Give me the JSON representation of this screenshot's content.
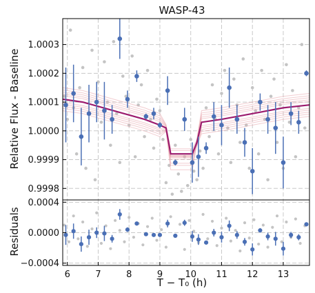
{
  "chart_data": [
    {
      "type": "scatter",
      "title": "WASP-43",
      "xlabel": "",
      "ylabel": "Relative Flux - Baseline",
      "xlim": [
        5.85,
        13.85
      ],
      "ylim": [
        0.99976,
        1.00039
      ],
      "yticks": [
        "0.9998",
        "0.9999",
        "1.0000",
        "1.0001",
        "1.0002",
        "1.0003"
      ],
      "grid": true,
      "series": [
        {
          "kind": "raw",
          "x": [
            5.9,
            6.0,
            6.1,
            6.2,
            6.3,
            6.4,
            6.5,
            6.6,
            6.7,
            6.8,
            6.9,
            7.0,
            7.1,
            7.2,
            7.3,
            7.4,
            7.5,
            7.6,
            7.7,
            7.8,
            7.9,
            8.0,
            8.1,
            8.2,
            8.3,
            8.4,
            8.5,
            8.6,
            8.7,
            8.8,
            8.9,
            9.0,
            9.1,
            9.2,
            9.3,
            9.4,
            9.5,
            9.6,
            9.7,
            9.8,
            9.9,
            10.0,
            10.1,
            10.2,
            10.3,
            10.4,
            10.5,
            10.6,
            10.7,
            10.8,
            10.9,
            11.0,
            11.1,
            11.2,
            11.3,
            11.4,
            11.5,
            11.6,
            11.7,
            11.8,
            11.9,
            12.0,
            12.1,
            12.2,
            12.3,
            12.4,
            12.5,
            12.6,
            12.7,
            12.8,
            12.9,
            13.0,
            13.1,
            13.2,
            13.3,
            13.4,
            13.5,
            13.6,
            13.7
          ],
          "y": [
            1.00012,
            1.00004,
            1.00035,
            1.00008,
            0.99992,
            1.00015,
            1.00022,
            0.99987,
            1.00006,
            1.00028,
            0.99983,
            1.00017,
            1.00003,
            1.00024,
            1.0001,
            0.99995,
            1.00031,
            1.00006,
            0.99989,
            1.00019,
            1.00012,
            1.00002,
            1.00026,
            0.99991,
            1.00009,
            1.00016,
            0.99998,
            1.00021,
            1.00004,
            0.99994,
            1.00011,
            1.00007,
            0.99997,
            0.99982,
            0.99988,
            0.99978,
            0.99995,
            0.99985,
            0.99979,
            0.99991,
            0.99981,
            0.99997,
            0.99986,
            0.99983,
            0.99993,
            0.99987,
            1.00008,
            0.99998,
            1.00016,
            1.00004,
            0.99992,
            1.00013,
            1.00021,
            1.00001,
            0.99989,
            1.00018,
            1.00009,
            0.99996,
            1.00025,
            1.00002,
            0.99987,
            1.00015,
            1.00007,
            0.99992,
            1.00021,
            1.00004,
            0.99983,
            1.00012,
            1.00018,
            0.99996,
            1.00009,
            0.99987,
            1.00023,
            1.00003,
            1.00014,
            0.99991,
            1.00008,
            1.0003,
            1.00001
          ]
        },
        {
          "kind": "binned",
          "x": [
            5.95,
            6.2,
            6.45,
            6.7,
            6.95,
            7.2,
            7.45,
            7.7,
            7.95,
            8.25,
            8.55,
            8.8,
            9.0,
            9.25,
            9.5,
            9.8,
            10.05,
            10.25,
            10.5,
            10.75,
            11.0,
            11.25,
            11.5,
            11.75,
            12.0,
            12.25,
            12.5,
            12.75,
            13.0,
            13.25,
            13.5,
            13.75
          ],
          "y": [
            1.00009,
            1.00013,
            0.99998,
            1.00006,
            1.0001,
            1.00007,
            1.00004,
            1.00032,
            1.00011,
            1.00019,
            1.00005,
            1.00006,
            1.00002,
            1.00014,
            0.99989,
            1.00004,
            0.99989,
            0.99991,
            0.99994,
            1.00005,
            1.00002,
            1.00015,
            1.00004,
            0.99996,
            0.99986,
            1.0001,
            1.00004,
            1.00001,
            0.99989,
            1.00006,
            1.00003,
            1.0002
          ],
          "yerr": [
            0.00013,
            0.0001,
            0.0001,
            0.0001,
            7e-05,
            0.0001,
            5e-05,
            7e-05,
            3e-05,
            2e-05,
            1e-05,
            2e-05,
            1e-05,
            5e-05,
            1e-05,
            4e-05,
            7e-05,
            7e-05,
            2e-05,
            5e-05,
            7e-05,
            7e-05,
            5e-05,
            5e-05,
            8e-05,
            3e-05,
            5e-05,
            9e-05,
            9e-05,
            4e-05,
            4e-05,
            1e-05
          ]
        },
        {
          "kind": "model",
          "x": [
            5.85,
            6.5,
            7.5,
            8.5,
            9.0,
            9.2,
            9.35,
            9.6,
            9.9,
            10.05,
            10.2,
            10.35,
            11.0,
            12.0,
            13.0,
            13.85
          ],
          "y": [
            1.00011,
            1.0001,
            1.00007,
            1.00004,
            1.00002,
            1.00001,
            0.99992,
            0.99992,
            0.99992,
            0.99992,
            0.99996,
            1.00003,
            1.00004,
            1.00006,
            1.00008,
            1.00009
          ]
        }
      ]
    },
    {
      "type": "scatter",
      "title": "",
      "xlabel": "T − T₀ (h)",
      "ylabel": "Residuals",
      "xlim": [
        5.85,
        13.85
      ],
      "ylim": [
        -0.00043,
        0.00043
      ],
      "yticks": [
        "−0.0004",
        "0.0000",
        "0.0004"
      ],
      "xticks": [
        "6",
        "7",
        "8",
        "9",
        "10",
        "11",
        "12",
        "13"
      ],
      "grid": true,
      "series": [
        {
          "kind": "raw",
          "x": [
            5.9,
            6.05,
            6.2,
            6.35,
            6.5,
            6.65,
            6.8,
            6.95,
            7.1,
            7.25,
            7.4,
            7.55,
            7.7,
            7.85,
            8.0,
            8.15,
            8.3,
            8.45,
            8.6,
            8.75,
            8.9,
            9.05,
            9.2,
            9.35,
            9.5,
            9.65,
            9.8,
            9.95,
            10.1,
            10.25,
            10.4,
            10.55,
            10.7,
            10.85,
            11.0,
            11.15,
            11.3,
            11.45,
            11.6,
            11.75,
            11.9,
            12.05,
            12.2,
            12.35,
            12.5,
            12.65,
            12.8,
            12.95,
            13.1,
            13.25,
            13.4,
            13.55,
            13.7
          ],
          "y": [
            0.0001,
            -0.00012,
            0.00022,
            -8e-05,
            0.00014,
            -0.00018,
            5e-05,
            0.00026,
            -0.00014,
            9e-05,
            -0.00021,
            0.00016,
            3e-05,
            -0.00012,
            0.0002,
            -6e-05,
            0.00012,
            -0.00016,
            8e-05,
            0.00019,
            -0.0001,
            4e-05,
            -0.00019,
            0.00021,
            -5e-05,
            0.00011,
            -0.00022,
            0.00016,
            2e-05,
            -0.00013,
            0.00024,
            -8e-05,
            0.00015,
            -0.00017,
            6e-05,
            0.00019,
            -0.00011,
            3e-05,
            -0.00024,
            0.00013,
            -7e-05,
            0.00017,
            -0.00015,
            0.0001,
            -0.00019,
            7e-05,
            0.00022,
            -0.00012,
            0.00014,
            -6e-05,
            0.00018,
            -0.00014,
            9e-05
          ]
        },
        {
          "kind": "binned",
          "x": [
            5.95,
            6.2,
            6.45,
            6.7,
            6.95,
            7.2,
            7.45,
            7.7,
            7.95,
            8.25,
            8.55,
            8.8,
            9.0,
            9.25,
            9.5,
            9.8,
            10.05,
            10.25,
            10.5,
            10.75,
            11.0,
            11.25,
            11.5,
            11.75,
            12.0,
            12.25,
            12.5,
            12.75,
            13.0,
            13.25,
            13.5,
            13.75
          ],
          "y": [
            -3e-05,
            2e-05,
            -0.00015,
            -6e-05,
            0.0,
            -1e-05,
            -8e-05,
            0.00024,
            4e-05,
            0.00012,
            -2e-05,
            -3e-05,
            -3e-05,
            0.00012,
            -4e-05,
            0.00013,
            -5e-05,
            -9e-05,
            -0.00013,
            0.0,
            -6e-05,
            9e-05,
            -3e-05,
            -0.00012,
            -0.00022,
            3e-05,
            -5e-05,
            -8e-05,
            -0.00021,
            -3e-05,
            -6e-05,
            0.00011
          ],
          "yerr": [
            0.00013,
            0.0001,
            0.0001,
            0.0001,
            7e-05,
            0.0001,
            5e-05,
            7e-05,
            3e-05,
            2e-05,
            1e-05,
            2e-05,
            1e-05,
            5e-05,
            1e-05,
            4e-05,
            7e-05,
            7e-05,
            2e-05,
            5e-05,
            7e-05,
            7e-05,
            5e-05,
            5e-05,
            8e-05,
            3e-05,
            5e-05,
            9e-05,
            9e-05,
            4e-05,
            4e-05,
            1e-05
          ]
        }
      ]
    }
  ]
}
